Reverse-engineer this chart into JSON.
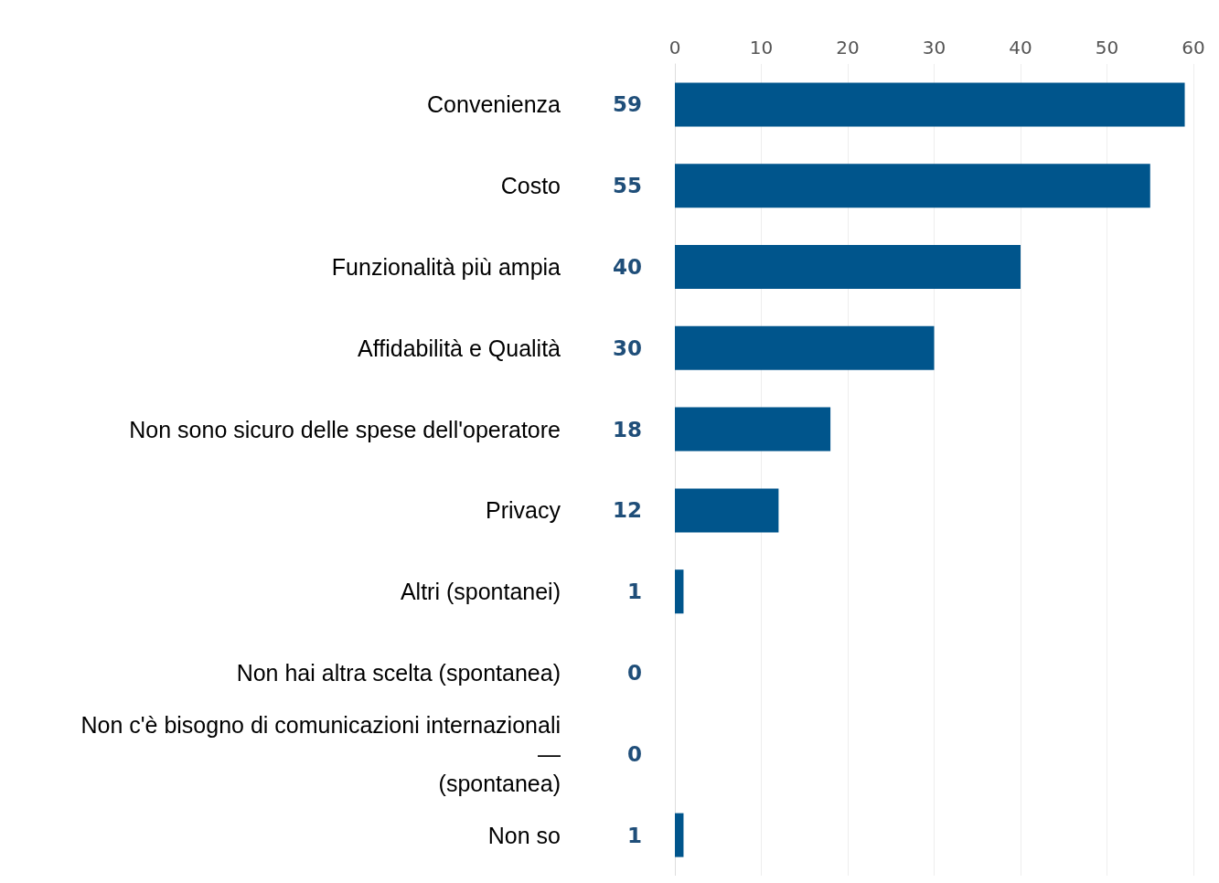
{
  "chart_data": {
    "type": "bar",
    "orientation": "horizontal",
    "categories": [
      "Convenienza",
      "Costo",
      "Funzionalità più ampia",
      "Affidabilità e Qualità",
      "Non sono sicuro delle spese dell'operatore",
      "Privacy",
      "Altri (spontanei)",
      "Non hai altra scelta (spontanea)",
      "Non c'è bisogno di comunicazioni internazionali\n—\n(spontanea)",
      "Non so"
    ],
    "values": [
      59,
      55,
      40,
      30,
      18,
      12,
      1,
      0,
      0,
      1
    ],
    "color": "#00558c",
    "xlim": [
      0,
      60
    ],
    "xticks": [
      0,
      10,
      20,
      30,
      40,
      50,
      60
    ],
    "grid": "x",
    "data_labels": true
  }
}
